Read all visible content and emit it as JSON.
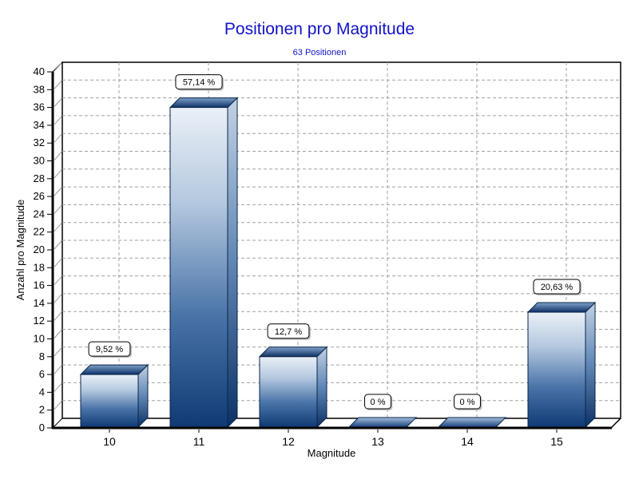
{
  "chart_data": {
    "type": "bar",
    "style": "3d-gradient-bars",
    "title": "Positionen pro Magnitude",
    "subtitle": "63 Positionen",
    "categories": [
      "10",
      "11",
      "12",
      "13",
      "14",
      "15"
    ],
    "values": [
      6,
      36,
      8,
      0,
      0,
      13
    ],
    "bar_labels": [
      "9,52 %",
      "57,14 %",
      "12,7 %",
      "0 %",
      "0 %",
      "20,63 %"
    ],
    "xlabel": "Magnitude",
    "ylabel": "Anzahl pro Magnitude",
    "ylim": [
      0,
      40
    ],
    "ytick_step": 2,
    "grid": "dashed",
    "legend": "none",
    "colors": {
      "title": "#1212c8",
      "bar_top_light": "#7fa1c9",
      "bar_top_dark": "#0d3166",
      "bar_front_light": "#eaf0f7",
      "bar_front_dark": "#0f3a74",
      "bar_side_light": "#c2d2e4",
      "bar_side_dark": "#0c3266",
      "bar_outline": "#0a2448",
      "grid": "#a0a0a0",
      "axis": "#000000",
      "label_box_bg": "#ffffff",
      "label_box_border": "#000000",
      "text": "#000000",
      "background": "#ffffff"
    }
  }
}
